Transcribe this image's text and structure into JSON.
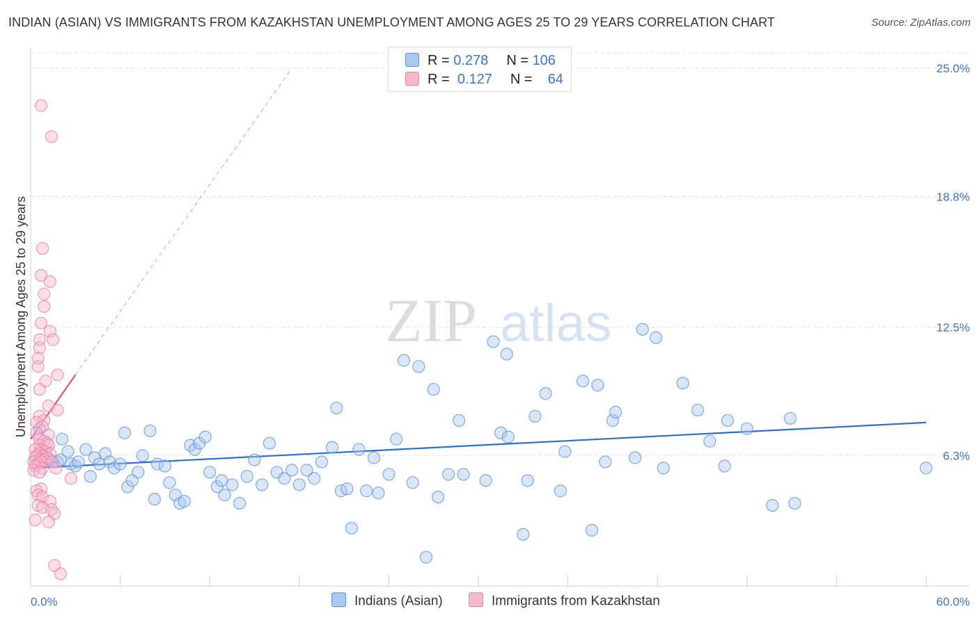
{
  "title": "INDIAN (ASIAN) VS IMMIGRANTS FROM KAZAKHSTAN UNEMPLOYMENT AMONG AGES 25 TO 29 YEARS CORRELATION CHART",
  "source": "Source: ZipAtlas.com",
  "watermark": {
    "zip": "ZIP",
    "atlas": "atlas"
  },
  "legend": {
    "rows": [
      {
        "r_label": "R =",
        "r_value": "0.278",
        "n_label": "N =",
        "n_value": "106",
        "color": "#aac8f0"
      },
      {
        "r_label": "R =",
        "r_value": "0.127",
        "n_label": "N =",
        "n_value": "64",
        "color": "#f7b8cb"
      }
    ]
  },
  "bottom_legend": {
    "series1": "Indians (Asian)",
    "series2": "Immigrants from Kazakhstan"
  },
  "colors": {
    "blue_fill": "#aac8f0",
    "blue_stroke": "#5b8fd8",
    "blue_line": "#2a6fcc",
    "pink_fill": "#f7b8cb",
    "pink_stroke": "#e87da0",
    "pink_line": "#e0507e",
    "axis_text": "#3d73c9",
    "grid": "#e2e2e2"
  },
  "chart_data": {
    "type": "scatter",
    "title": "INDIAN (ASIAN) VS IMMIGRANTS FROM KAZAKHSTAN UNEMPLOYMENT AMONG AGES 25 TO 29 YEARS CORRELATION CHART",
    "xlabel": "",
    "ylabel": "Unemployment Among Ages 25 to 29 years",
    "xlim": [
      0,
      60
    ],
    "ylim": [
      0,
      25.5
    ],
    "x_tick_labels": [
      "0.0%",
      "60.0%"
    ],
    "y_ticks": [
      6.3,
      12.5,
      18.8,
      25.0
    ],
    "y_tick_labels": [
      "6.3%",
      "12.5%",
      "18.8%",
      "25.0%"
    ],
    "series": [
      {
        "name": "Indians (Asian)",
        "trend": {
          "x": [
            0.0,
            60.0
          ],
          "y": [
            5.7,
            7.9
          ]
        },
        "points": [
          [
            0.6,
            7.6
          ],
          [
            0.8,
            6.3
          ],
          [
            1.0,
            6.1
          ],
          [
            1.1,
            6.1
          ],
          [
            1.3,
            6.1
          ],
          [
            1.5,
            6.0
          ],
          [
            1.8,
            6.0
          ],
          [
            2.0,
            6.1
          ],
          [
            2.1,
            7.1
          ],
          [
            2.5,
            6.5
          ],
          [
            2.7,
            5.9
          ],
          [
            3.0,
            5.8
          ],
          [
            3.2,
            6.0
          ],
          [
            3.7,
            6.6
          ],
          [
            4.0,
            5.3
          ],
          [
            4.3,
            6.2
          ],
          [
            4.6,
            5.9
          ],
          [
            5.0,
            6.4
          ],
          [
            5.3,
            6.0
          ],
          [
            5.6,
            5.7
          ],
          [
            6.0,
            5.9
          ],
          [
            6.3,
            7.4
          ],
          [
            6.5,
            4.8
          ],
          [
            6.8,
            5.1
          ],
          [
            7.2,
            5.5
          ],
          [
            7.5,
            6.3
          ],
          [
            8.0,
            7.5
          ],
          [
            8.3,
            4.2
          ],
          [
            8.5,
            5.9
          ],
          [
            9.0,
            5.8
          ],
          [
            9.3,
            5.0
          ],
          [
            9.7,
            4.4
          ],
          [
            10.0,
            4.0
          ],
          [
            10.3,
            4.1
          ],
          [
            10.7,
            6.8
          ],
          [
            11.0,
            6.6
          ],
          [
            11.3,
            6.9
          ],
          [
            11.7,
            7.2
          ],
          [
            12.0,
            5.5
          ],
          [
            12.5,
            4.8
          ],
          [
            12.8,
            5.1
          ],
          [
            13.0,
            4.4
          ],
          [
            13.5,
            4.9
          ],
          [
            14.0,
            4.0
          ],
          [
            14.5,
            5.3
          ],
          [
            15.0,
            6.1
          ],
          [
            15.5,
            4.9
          ],
          [
            16.0,
            6.9
          ],
          [
            16.5,
            5.5
          ],
          [
            17.0,
            5.2
          ],
          [
            17.5,
            5.6
          ],
          [
            18.0,
            4.9
          ],
          [
            18.5,
            5.6
          ],
          [
            19.0,
            5.2
          ],
          [
            19.5,
            6.0
          ],
          [
            20.2,
            6.7
          ],
          [
            20.5,
            8.6
          ],
          [
            20.8,
            4.6
          ],
          [
            21.2,
            4.7
          ],
          [
            21.5,
            2.8
          ],
          [
            22.0,
            6.6
          ],
          [
            22.5,
            4.6
          ],
          [
            23.0,
            6.2
          ],
          [
            23.3,
            4.5
          ],
          [
            24.0,
            5.4
          ],
          [
            24.5,
            7.1
          ],
          [
            25.0,
            10.9
          ],
          [
            25.6,
            5.0
          ],
          [
            26.0,
            10.6
          ],
          [
            26.5,
            1.4
          ],
          [
            27.0,
            9.5
          ],
          [
            27.3,
            4.3
          ],
          [
            28.0,
            5.4
          ],
          [
            28.7,
            8.0
          ],
          [
            29.0,
            5.4
          ],
          [
            30.5,
            5.1
          ],
          [
            31.0,
            11.8
          ],
          [
            31.5,
            7.4
          ],
          [
            31.9,
            11.2
          ],
          [
            32.0,
            7.2
          ],
          [
            33.0,
            2.5
          ],
          [
            33.3,
            5.1
          ],
          [
            33.8,
            8.2
          ],
          [
            34.5,
            9.3
          ],
          [
            35.5,
            4.6
          ],
          [
            35.8,
            6.5
          ],
          [
            37.0,
            9.9
          ],
          [
            37.6,
            2.7
          ],
          [
            38.0,
            9.7
          ],
          [
            38.5,
            6.0
          ],
          [
            39.0,
            8.0
          ],
          [
            39.2,
            8.4
          ],
          [
            40.5,
            6.2
          ],
          [
            41.0,
            12.4
          ],
          [
            41.9,
            12.0
          ],
          [
            42.4,
            5.7
          ],
          [
            43.7,
            9.8
          ],
          [
            44.7,
            8.5
          ],
          [
            45.5,
            7.0
          ],
          [
            46.5,
            5.8
          ],
          [
            46.7,
            8.0
          ],
          [
            48.0,
            7.6
          ],
          [
            49.7,
            3.9
          ],
          [
            50.9,
            8.1
          ],
          [
            51.2,
            4.0
          ],
          [
            60.0,
            5.7
          ]
        ]
      },
      {
        "name": "Immigrants from Kazakhstan",
        "trend": {
          "x": [
            0.0,
            3.0
          ],
          "y": [
            7.1,
            10.2
          ]
        },
        "trend_extension": {
          "x": [
            3.0,
            17.5
          ],
          "y": [
            10.2,
            25.0
          ]
        },
        "points": [
          [
            0.7,
            23.2
          ],
          [
            1.4,
            21.7
          ],
          [
            0.8,
            16.3
          ],
          [
            0.7,
            15.0
          ],
          [
            1.3,
            14.7
          ],
          [
            0.9,
            14.1
          ],
          [
            0.9,
            13.5
          ],
          [
            0.7,
            12.7
          ],
          [
            1.3,
            12.3
          ],
          [
            0.6,
            11.9
          ],
          [
            1.5,
            11.9
          ],
          [
            0.6,
            11.5
          ],
          [
            0.5,
            11.0
          ],
          [
            0.5,
            10.6
          ],
          [
            1.8,
            10.2
          ],
          [
            1.0,
            9.9
          ],
          [
            0.6,
            9.5
          ],
          [
            1.2,
            8.7
          ],
          [
            1.8,
            8.5
          ],
          [
            0.6,
            8.2
          ],
          [
            0.9,
            8.0
          ],
          [
            0.4,
            7.9
          ],
          [
            0.8,
            7.7
          ],
          [
            0.4,
            7.4
          ],
          [
            1.2,
            7.3
          ],
          [
            0.6,
            7.1
          ],
          [
            0.9,
            7.0
          ],
          [
            1.1,
            6.9
          ],
          [
            0.6,
            6.8
          ],
          [
            1.2,
            6.8
          ],
          [
            0.7,
            6.6
          ],
          [
            0.3,
            6.6
          ],
          [
            1.0,
            6.5
          ],
          [
            1.3,
            6.4
          ],
          [
            0.6,
            6.4
          ],
          [
            0.8,
            6.3
          ],
          [
            0.4,
            6.3
          ],
          [
            1.1,
            6.2
          ],
          [
            0.3,
            6.2
          ],
          [
            0.6,
            6.1
          ],
          [
            0.9,
            6.1
          ],
          [
            0.2,
            6.0
          ],
          [
            0.7,
            6.0
          ],
          [
            1.4,
            6.0
          ],
          [
            0.5,
            5.9
          ],
          [
            0.3,
            5.8
          ],
          [
            0.8,
            5.7
          ],
          [
            1.7,
            5.7
          ],
          [
            0.2,
            5.6
          ],
          [
            0.6,
            5.5
          ],
          [
            2.7,
            5.2
          ],
          [
            0.7,
            4.7
          ],
          [
            0.4,
            4.6
          ],
          [
            0.5,
            4.4
          ],
          [
            0.8,
            4.3
          ],
          [
            1.3,
            4.1
          ],
          [
            0.5,
            3.9
          ],
          [
            0.8,
            3.8
          ],
          [
            1.4,
            3.7
          ],
          [
            1.6,
            3.5
          ],
          [
            0.3,
            3.2
          ],
          [
            1.2,
            3.1
          ],
          [
            1.6,
            1.0
          ],
          [
            2.0,
            0.6
          ]
        ]
      }
    ]
  }
}
